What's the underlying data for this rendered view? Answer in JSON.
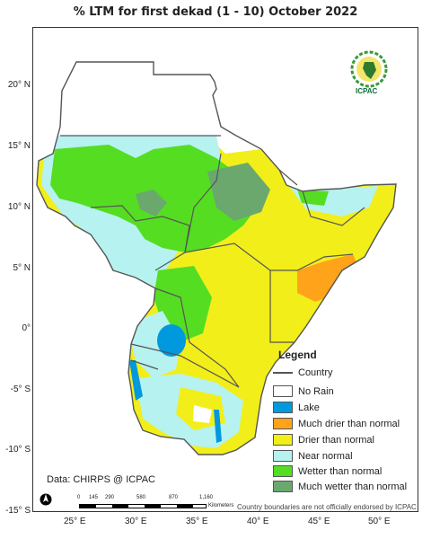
{
  "title": "% LTM  for  first  dekad (1 - 10)  October 2022",
  "lat_labels": [
    "20° N",
    "15° N",
    "10° N",
    "5° N",
    "0°",
    "-5° S",
    "-10° S",
    "-15° S"
  ],
  "lon_labels": [
    "25° E",
    "30° E",
    "35° E",
    "40° E",
    "45° E",
    "50° E"
  ],
  "legend": {
    "title": "Legend",
    "country": "Country",
    "items": [
      {
        "label": "No Rain",
        "color": "#ffffff"
      },
      {
        "label": "Lake",
        "color": "#0099dd"
      },
      {
        "label": "Much drier than normal",
        "color": "#ffa31a"
      },
      {
        "label": "Drier than normal",
        "color": "#f2ee1a"
      },
      {
        "label": "Near normal",
        "color": "#b6f2f0"
      },
      {
        "label": "Wetter than normal",
        "color": "#55dd22"
      },
      {
        "label": "Much wetter than normal",
        "color": "#6aa86e"
      }
    ]
  },
  "credit": "Data: CHIRPS @ ICPAC",
  "endorsement": "Country boundaries are not officially endorsed by ICPAC",
  "logo_text": "ICPAC",
  "scale_labels": [
    "0",
    "145",
    "290",
    "580",
    "870",
    "1,160"
  ],
  "scale_unit": "Kilometers"
}
